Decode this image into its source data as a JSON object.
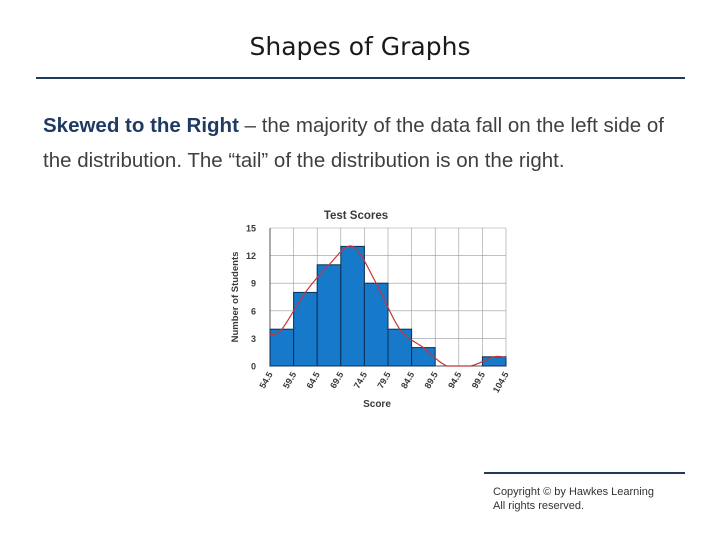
{
  "slide": {
    "title": "Shapes of Graphs",
    "term": "Skewed to the Right",
    "description": " – the majority of the data fall on the left side of the distribution. The “tail” of the distribution is on the right.",
    "copyright_line1": "Copyright © by Hawkes Learning",
    "copyright_line2": "All rights reserved."
  },
  "chart_data": {
    "type": "bar",
    "title": "Test Scores",
    "xlabel": "Score",
    "ylabel": "Number of Students",
    "bin_edges": [
      "54.5",
      "59.5",
      "64.5",
      "69.5",
      "74.5",
      "79.5",
      "84.5",
      "89.5",
      "94.5",
      "99.5",
      "104.5"
    ],
    "values": [
      4,
      8,
      11,
      13,
      9,
      4,
      2,
      0,
      0,
      1
    ],
    "yticks": [
      0,
      3,
      6,
      9,
      12,
      15
    ],
    "ylim": [
      0,
      15
    ],
    "grid": true,
    "overlay": "fitted curve",
    "colors": {
      "bar": "#1779c9",
      "bar_edge": "#0c2f57",
      "curve": "#c2373a",
      "grid": "#9a9a9a"
    }
  }
}
